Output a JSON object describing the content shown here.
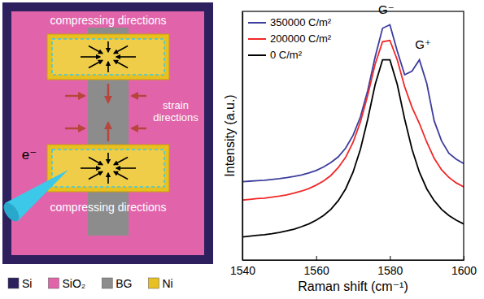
{
  "chart_data": {
    "type": "line",
    "x_label": "Raman shift (cm⁻¹)",
    "y_label": "Intensity (a.u.)",
    "x": [
      1540,
      1542,
      1544,
      1546,
      1548,
      1550,
      1552,
      1554,
      1556,
      1558,
      1560,
      1562,
      1564,
      1566,
      1568,
      1570,
      1572,
      1574,
      1576,
      1578,
      1580,
      1582,
      1584,
      1586,
      1588,
      1590,
      1592,
      1594,
      1596,
      1598,
      1600
    ],
    "series": [
      {
        "name": "350000 C/m²",
        "color": "#3d3d9e",
        "values": [
          31.5,
          31.7,
          31.9,
          32.1,
          32.4,
          32.7,
          33.1,
          33.6,
          34.2,
          35.0,
          36.0,
          37.4,
          39.2,
          41.5,
          45.0,
          50.1,
          57.5,
          68.2,
          81.7,
          93.2,
          94.6,
          84.0,
          74.5,
          76.0,
          80.5,
          71.0,
          56.0,
          47.9,
          42.9,
          40.5,
          38.8
        ]
      },
      {
        "name": "200000 C/m²",
        "color": "#f02828",
        "values": [
          24.1,
          24.4,
          24.7,
          24.9,
          25.3,
          25.7,
          26.2,
          26.9,
          27.7,
          28.7,
          30.1,
          31.8,
          34.0,
          37.2,
          41.3,
          47.3,
          55.5,
          66.3,
          78.8,
          87.8,
          88.3,
          80.5,
          69.7,
          61.4,
          54.9,
          47.4,
          40.9,
          36.3,
          33.2,
          31.0,
          29.4
        ]
      },
      {
        "name": "0 C/m²",
        "color": "#000000",
        "values": [
          9.3,
          9.6,
          9.9,
          10.2,
          10.6,
          11.1,
          11.7,
          12.4,
          13.4,
          14.5,
          16.0,
          17.9,
          20.4,
          23.9,
          28.6,
          35.3,
          44.5,
          56.7,
          70.6,
          80.5,
          80.5,
          70.6,
          56.7,
          44.5,
          35.3,
          28.6,
          23.9,
          20.4,
          17.9,
          16.0,
          14.5
        ]
      }
    ],
    "xlim": [
      1540,
      1600
    ],
    "ylim": [
      0,
      100
    ],
    "xticks": [
      1540,
      1560,
      1580,
      1600
    ],
    "tick_labels": "x",
    "legend": "upper left",
    "annotations": [
      {
        "text": "G⁻",
        "x": 1579,
        "y": 99
      },
      {
        "text": "G⁺",
        "x": 1589,
        "y": 85
      }
    ]
  },
  "diagram": {
    "texts": {
      "compressing": "compressing directions",
      "strain": "strain directions",
      "beam": "e⁻"
    },
    "legend": [
      {
        "label": "Si",
        "color": "#2e1f5e"
      },
      {
        "label": "SiO₂",
        "color": "#e164aa"
      },
      {
        "label": "BG",
        "color": "#8c8c8c"
      },
      {
        "label": "Ni",
        "color": "#e8c020"
      }
    ]
  }
}
